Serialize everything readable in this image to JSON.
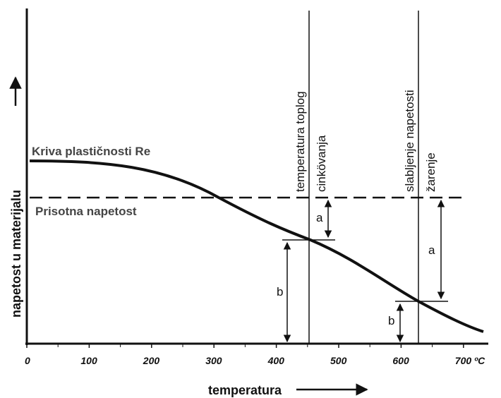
{
  "annotations": {
    "curve_label": "Kriva plastičnosti Re",
    "stress_label": "Prisotna napetost",
    "line1_top": "temperatura toplog",
    "line1_bottom": "cinkövanja",
    "line2_top": "slabljenje napetosti",
    "line2_bottom": "žarenje",
    "a1": "a",
    "b1": "b",
    "a2": "a",
    "b2": "b"
  },
  "axes": {
    "y_label": "napetost u materijalu",
    "x_label": "temperatura",
    "x_ticks": [
      "0",
      "100",
      "200",
      "300",
      "400",
      "500",
      "600",
      "700 ºC"
    ]
  }
}
